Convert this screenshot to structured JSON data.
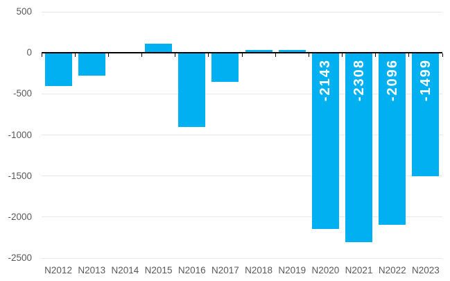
{
  "chart_data": {
    "type": "bar",
    "title": "",
    "xlabel": "",
    "ylabel": "",
    "categories": [
      "N2012",
      "N2013",
      "N2014",
      "N2015",
      "N2016",
      "N2017",
      "N2018",
      "N2019",
      "N2020",
      "N2021",
      "N2022",
      "N2023"
    ],
    "values": [
      -405,
      -280,
      0,
      110,
      -900,
      -350,
      35,
      35,
      -2143,
      -2308,
      -2096,
      -1499
    ],
    "data_labels": [
      null,
      null,
      null,
      null,
      null,
      null,
      null,
      null,
      "-2143",
      "-2308",
      "-2096",
      "-1499"
    ],
    "ylim": [
      -2500,
      500
    ],
    "yticks": [
      500,
      0,
      -500,
      -1000,
      -1500,
      -2000,
      -2500
    ],
    "grid": true,
    "legend_position": "none",
    "colors": {
      "bar": "#00B0F0",
      "data_label_text": "#FFFFFF",
      "axis_text": "#595959",
      "gridline": "#E7E7E7",
      "zero_axis_line": "#000000"
    }
  }
}
